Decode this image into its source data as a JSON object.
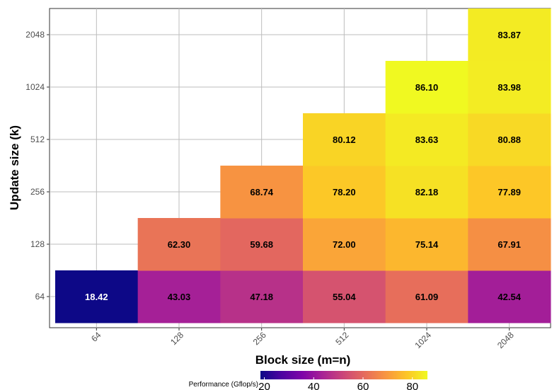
{
  "chart_data": {
    "type": "heatmap",
    "xlabel": "Block size (m=n)",
    "ylabel": "Update size (k)",
    "x_categories": [
      "64",
      "128",
      "256",
      "512",
      "1024",
      "2048"
    ],
    "y_categories": [
      "64",
      "128",
      "256",
      "512",
      "1024",
      "2048"
    ],
    "cells": [
      {
        "x": "64",
        "y": "64",
        "value": 18.42,
        "label": "18.42"
      },
      {
        "x": "128",
        "y": "64",
        "value": 43.03,
        "label": "43.03"
      },
      {
        "x": "256",
        "y": "64",
        "value": 47.18,
        "label": "47.18"
      },
      {
        "x": "512",
        "y": "64",
        "value": 55.04,
        "label": "55.04"
      },
      {
        "x": "1024",
        "y": "64",
        "value": 61.09,
        "label": "61.09"
      },
      {
        "x": "2048",
        "y": "64",
        "value": 42.54,
        "label": "42.54"
      },
      {
        "x": "128",
        "y": "128",
        "value": 62.3,
        "label": "62.30"
      },
      {
        "x": "256",
        "y": "128",
        "value": 59.68,
        "label": "59.68"
      },
      {
        "x": "512",
        "y": "128",
        "value": 72.0,
        "label": "72.00"
      },
      {
        "x": "1024",
        "y": "128",
        "value": 75.14,
        "label": "75.14"
      },
      {
        "x": "2048",
        "y": "128",
        "value": 67.91,
        "label": "67.91"
      },
      {
        "x": "256",
        "y": "256",
        "value": 68.74,
        "label": "68.74"
      },
      {
        "x": "512",
        "y": "256",
        "value": 78.2,
        "label": "78.20"
      },
      {
        "x": "1024",
        "y": "256",
        "value": 82.18,
        "label": "82.18"
      },
      {
        "x": "2048",
        "y": "256",
        "value": 77.89,
        "label": "77.89"
      },
      {
        "x": "512",
        "y": "512",
        "value": 80.12,
        "label": "80.12"
      },
      {
        "x": "1024",
        "y": "512",
        "value": 83.63,
        "label": "83.63"
      },
      {
        "x": "2048",
        "y": "512",
        "value": 80.88,
        "label": "80.88"
      },
      {
        "x": "1024",
        "y": "1024",
        "value": 86.1,
        "label": "86.10"
      },
      {
        "x": "2048",
        "y": "1024",
        "value": 83.98,
        "label": "83.98"
      },
      {
        "x": "2048",
        "y": "2048",
        "value": 83.87,
        "label": "83.87"
      }
    ],
    "colorscale": "plasma",
    "color_range": [
      18.42,
      86.1
    ],
    "legend": {
      "title": "Performance (Gflop/s)",
      "ticks": [
        "20",
        "40",
        "60",
        "80"
      ],
      "tick_values": [
        20,
        40,
        60,
        80
      ],
      "placement": "bottom"
    },
    "grid": true
  }
}
